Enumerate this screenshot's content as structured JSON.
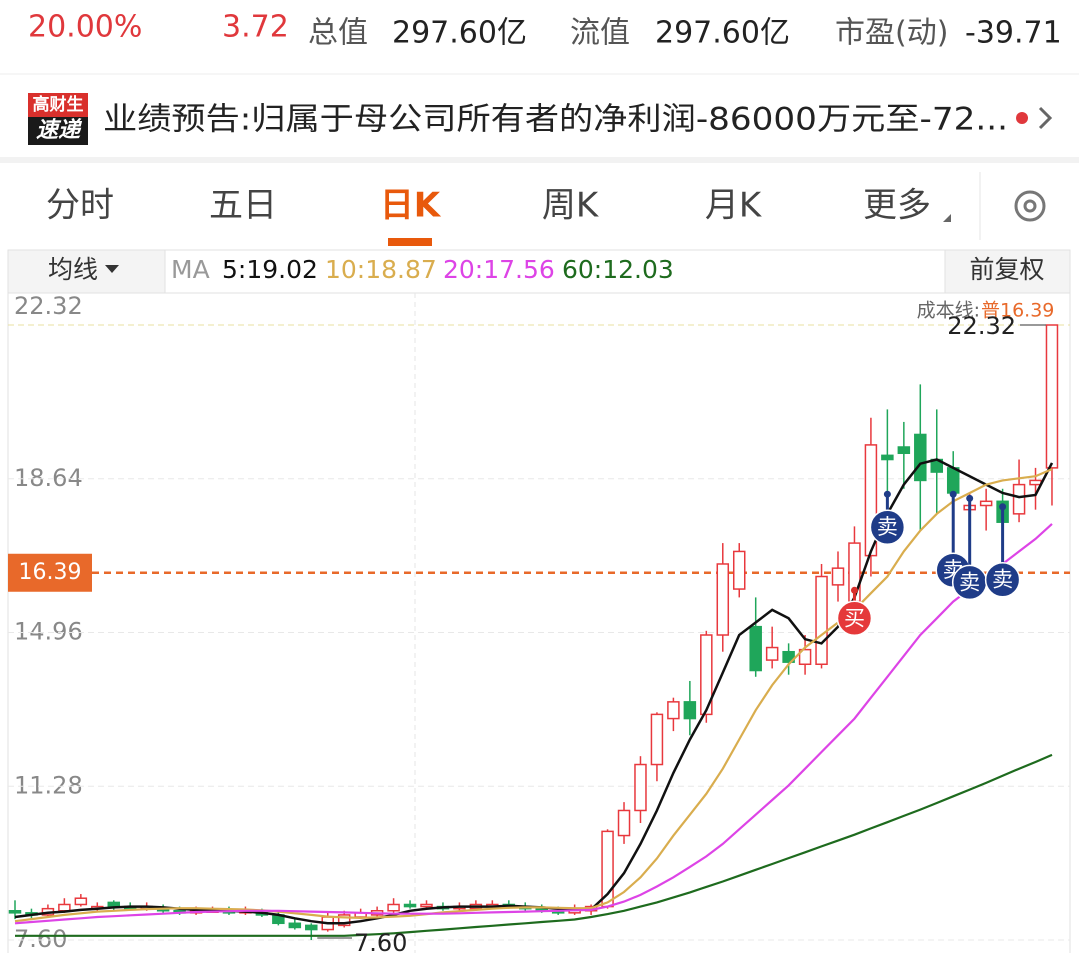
{
  "header": {
    "change_pct": "20.00%",
    "change": "3.72",
    "stats": [
      {
        "label": "总值",
        "value": "297.60亿"
      },
      {
        "label": "流值",
        "value": "297.60亿"
      },
      {
        "label": "市盈(动)",
        "value": "-39.71"
      }
    ]
  },
  "news": {
    "badge_top": "高财生",
    "badge_bottom": "速递",
    "text": "业绩预告:归属于母公司所有者的净利润-86000万元至-72..."
  },
  "tabs": {
    "items": [
      "分时",
      "五日",
      "日K",
      "周K",
      "月K",
      "更多"
    ],
    "active": 2
  },
  "toolbar": {
    "ma_menu": "均线",
    "ma_label": "MA",
    "adjust": "前复权"
  },
  "chart_data": {
    "type": "candlestick",
    "open": [
      8.3,
      8.25,
      8.2,
      8.3,
      8.45,
      8.35,
      8.5,
      8.4,
      8.35,
      8.35,
      8.3,
      8.25,
      8.3,
      8.3,
      8.25,
      8.25,
      8.2,
      8.0,
      7.95,
      7.85,
      7.95,
      8.15,
      8.2,
      8.3,
      8.45,
      8.4,
      8.4,
      8.35,
      8.35,
      8.4,
      8.45,
      8.4,
      8.35,
      8.3,
      8.25,
      8.3,
      8.4,
      10.1,
      10.7,
      11.8,
      12.9,
      13.3,
      13.0,
      14.9,
      16.0,
      15.1,
      14.3,
      14.5,
      14.2,
      14.2,
      16.1,
      15.7,
      16.8,
      19.2,
      19.4,
      19.7,
      19.1,
      18.9,
      17.9,
      18.0,
      18.1,
      17.8,
      18.5,
      18.9
    ],
    "high": [
      8.55,
      8.35,
      8.45,
      8.6,
      8.7,
      8.5,
      8.55,
      8.5,
      8.5,
      8.45,
      8.4,
      8.4,
      8.4,
      8.4,
      8.4,
      8.35,
      8.3,
      8.1,
      8.0,
      8.25,
      8.3,
      8.35,
      8.4,
      8.6,
      8.55,
      8.55,
      8.5,
      8.5,
      8.55,
      8.55,
      8.55,
      8.5,
      8.45,
      8.4,
      8.45,
      8.45,
      10.25,
      10.9,
      12.0,
      13.05,
      13.4,
      13.8,
      15.0,
      17.1,
      17.1,
      15.8,
      15.1,
      14.7,
      14.9,
      16.6,
      16.9,
      17.5,
      20.1,
      20.3,
      20.0,
      20.9,
      20.3,
      19.3,
      18.3,
      18.4,
      18.4,
      19.1,
      18.9,
      22.32
    ],
    "low": [
      8.1,
      8.1,
      8.15,
      8.25,
      8.4,
      8.3,
      8.3,
      8.3,
      8.3,
      8.25,
      8.2,
      8.2,
      8.25,
      8.2,
      8.2,
      8.15,
      7.95,
      7.85,
      7.6,
      7.8,
      7.9,
      8.1,
      8.15,
      8.25,
      8.35,
      8.35,
      8.3,
      8.3,
      8.3,
      8.35,
      8.35,
      8.3,
      8.25,
      8.2,
      8.2,
      8.2,
      8.35,
      9.9,
      10.4,
      11.4,
      12.6,
      12.5,
      12.8,
      14.5,
      15.8,
      13.9,
      14.1,
      13.95,
      13.95,
      14.1,
      15.7,
      15.3,
      16.3,
      17.6,
      18.4,
      17.4,
      17.8,
      17.6,
      17.5,
      17.4,
      17.3,
      17.6,
      17.9,
      18.0
    ],
    "close": [
      8.25,
      8.2,
      8.35,
      8.45,
      8.6,
      8.4,
      8.4,
      8.35,
      8.4,
      8.3,
      8.25,
      8.3,
      8.3,
      8.25,
      8.3,
      8.2,
      8.0,
      7.9,
      7.85,
      8.15,
      8.2,
      8.25,
      8.3,
      8.45,
      8.4,
      8.45,
      8.35,
      8.4,
      8.45,
      8.45,
      8.4,
      8.35,
      8.3,
      8.25,
      8.35,
      8.4,
      10.2,
      10.7,
      11.8,
      13.0,
      13.3,
      12.9,
      14.9,
      16.6,
      16.9,
      14.05,
      14.6,
      14.25,
      14.55,
      16.3,
      16.5,
      17.1,
      19.45,
      19.1,
      19.25,
      18.6,
      18.8,
      18.3,
      18.0,
      18.1,
      17.6,
      18.5,
      18.6,
      22.32
    ],
    "up_color": "#e8383d",
    "down_color": "#1fa65a",
    "series": [
      {
        "name": "5:19.02",
        "color": "#111111",
        "values": [
          8.15,
          8.2,
          8.25,
          8.28,
          8.32,
          8.35,
          8.38,
          8.4,
          8.4,
          8.38,
          8.35,
          8.32,
          8.3,
          8.3,
          8.28,
          8.25,
          8.2,
          8.12,
          8.05,
          8.0,
          8.0,
          8.05,
          8.12,
          8.2,
          8.3,
          8.35,
          8.38,
          8.4,
          8.4,
          8.4,
          8.42,
          8.4,
          8.38,
          8.35,
          8.32,
          8.33,
          8.7,
          9.2,
          9.9,
          10.7,
          11.6,
          12.4,
          13.1,
          14.0,
          14.9,
          15.2,
          15.5,
          15.3,
          14.8,
          14.7,
          15.1,
          15.8,
          16.9,
          17.8,
          18.5,
          19.0,
          19.1,
          18.9,
          18.7,
          18.5,
          18.3,
          18.2,
          18.25,
          19.02
        ]
      },
      {
        "name": "10:18.87",
        "color": "#d9ad4e",
        "values": [
          8.05,
          8.1,
          8.15,
          8.2,
          8.24,
          8.28,
          8.3,
          8.32,
          8.34,
          8.35,
          8.36,
          8.36,
          8.35,
          8.34,
          8.33,
          8.31,
          8.28,
          8.24,
          8.2,
          8.16,
          8.14,
          8.13,
          8.14,
          8.16,
          8.18,
          8.22,
          8.26,
          8.29,
          8.32,
          8.35,
          8.37,
          8.38,
          8.38,
          8.37,
          8.36,
          8.36,
          8.5,
          8.75,
          9.1,
          9.55,
          10.1,
          10.6,
          11.1,
          11.7,
          12.4,
          13.1,
          13.7,
          14.2,
          14.6,
          14.9,
          15.2,
          15.5,
          15.9,
          16.3,
          16.9,
          17.4,
          17.8,
          18.1,
          18.3,
          18.5,
          18.6,
          18.65,
          18.7,
          18.87
        ]
      },
      {
        "name": "20:17.56",
        "color": "#dd44e6",
        "values": [
          8.0,
          8.03,
          8.06,
          8.09,
          8.12,
          8.15,
          8.17,
          8.19,
          8.21,
          8.23,
          8.25,
          8.27,
          8.28,
          8.29,
          8.3,
          8.3,
          8.3,
          8.29,
          8.28,
          8.27,
          8.26,
          8.25,
          8.24,
          8.23,
          8.23,
          8.23,
          8.23,
          8.24,
          8.25,
          8.26,
          8.27,
          8.28,
          8.29,
          8.3,
          8.31,
          8.32,
          8.4,
          8.52,
          8.68,
          8.88,
          9.1,
          9.35,
          9.6,
          9.9,
          10.25,
          10.6,
          10.95,
          11.3,
          11.7,
          12.1,
          12.5,
          12.9,
          13.4,
          13.9,
          14.4,
          14.9,
          15.3,
          15.7,
          16.0,
          16.3,
          16.6,
          16.9,
          17.2,
          17.56
        ]
      },
      {
        "name": "60:12.03",
        "color": "#1e6b1e",
        "values": [
          7.7,
          7.7,
          7.7,
          7.7,
          7.7,
          7.7,
          7.7,
          7.7,
          7.7,
          7.7,
          7.7,
          7.7,
          7.7,
          7.7,
          7.7,
          7.7,
          7.7,
          7.7,
          7.7,
          7.7,
          7.7,
          7.72,
          7.74,
          7.76,
          7.79,
          7.82,
          7.85,
          7.88,
          7.91,
          7.94,
          7.97,
          8.0,
          8.03,
          8.06,
          8.09,
          8.15,
          8.22,
          8.3,
          8.4,
          8.5,
          8.62,
          8.74,
          8.87,
          9.0,
          9.14,
          9.28,
          9.42,
          9.56,
          9.7,
          9.84,
          9.98,
          10.12,
          10.27,
          10.42,
          10.57,
          10.72,
          10.88,
          11.04,
          11.2,
          11.36,
          11.53,
          11.7,
          11.86,
          12.03
        ]
      }
    ],
    "ylim": [
      7.6,
      22.32
    ],
    "yticks": [
      22.32,
      18.64,
      14.96,
      11.28,
      {
        "value": 7.6,
        "label": "7.60"
      }
    ],
    "grid": true,
    "low_label": "7.60",
    "cost_line": {
      "label": "成本线:",
      "tag": "普",
      "value": 16.39,
      "color": "#e8692a"
    },
    "signals": [
      {
        "index": 51,
        "label": "买"
      },
      {
        "index": 53,
        "label": "卖"
      },
      {
        "index": 57,
        "label": "卖"
      },
      {
        "index": 58,
        "label": "卖"
      },
      {
        "index": 60,
        "label": "卖"
      }
    ]
  }
}
